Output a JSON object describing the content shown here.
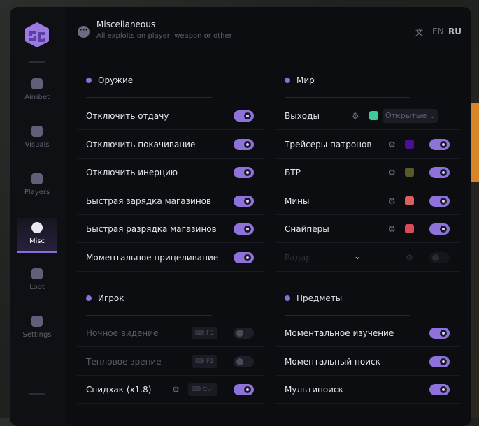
{
  "header": {
    "title": "Miscellaneous",
    "subtitle": "All exploits on player, weapon or other",
    "lang_en": "EN",
    "lang_ru": "RU"
  },
  "sidebar": {
    "logo": "SG",
    "items": [
      {
        "label": "Aimbet",
        "icon": "alien-icon",
        "active": false
      },
      {
        "label": "Visuals",
        "icon": "vr-goggles-icon",
        "active": false
      },
      {
        "label": "Players",
        "icon": "users-icon",
        "active": false
      },
      {
        "label": "Misc",
        "icon": "dots-icon",
        "active": true
      },
      {
        "label": "Loot",
        "icon": "briefcase-icon",
        "active": false
      },
      {
        "label": "Settings",
        "icon": "list-icon",
        "active": false
      }
    ]
  },
  "colors": {
    "accent": "#8f72d9",
    "bg": "#0c0d11"
  },
  "sections": [
    {
      "title": "Оружие",
      "col": 0,
      "row0": 0,
      "rows": [
        {
          "label": "Отключить отдачу",
          "toggle": true
        },
        {
          "label": "Отключить покачивание",
          "toggle": true
        },
        {
          "label": "Отключить инерцию",
          "toggle": true
        },
        {
          "label": "Быстрая зарядка магазинов",
          "toggle": true
        },
        {
          "label": "Быстрая разрядка магазинов",
          "toggle": true
        },
        {
          "label": "Моментальное прицеливание",
          "toggle": true
        }
      ]
    },
    {
      "title": "Мир",
      "col": 1,
      "row0": 0,
      "rows": [
        {
          "label": "Выходы",
          "gear": true,
          "color": "#3ec99a",
          "select": "Открытые"
        },
        {
          "label": "Трейсеры патронов",
          "gear": true,
          "color": "#4b0f8f",
          "toggle": true
        },
        {
          "label": "БТР",
          "gear": true,
          "color": "#5a5a28",
          "toggle": true
        },
        {
          "label": "Мины",
          "gear": true,
          "color": "#d9605f",
          "toggle": true
        },
        {
          "label": "Снайперы",
          "gear": true,
          "color": "#d94b5a",
          "toggle": true
        },
        {
          "label": "Радар",
          "gear": true,
          "chevron": true,
          "toggle": false,
          "faint": true
        }
      ]
    },
    {
      "title": "Игрок",
      "col": 0,
      "row0": 1,
      "rows": [
        {
          "label": "Ночное видение",
          "key": "F3",
          "toggle": false,
          "disabled": true
        },
        {
          "label": "Тепловое зрение",
          "key": "F2",
          "toggle": false,
          "disabled": true
        },
        {
          "label": "Спидхак (x1.8)",
          "gear": true,
          "key": "Ctrl",
          "toggle": true
        }
      ]
    },
    {
      "title": "Предметы",
      "col": 1,
      "row0": 1,
      "rows": [
        {
          "label": "Моментальное изучение",
          "toggle": true
        },
        {
          "label": "Моментальный поиск",
          "toggle": true
        },
        {
          "label": "Мультипоиск",
          "toggle": true
        }
      ]
    }
  ]
}
